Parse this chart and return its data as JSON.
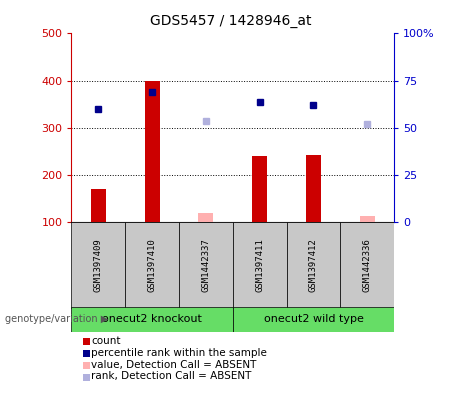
{
  "title": "GDS5457 / 1428946_at",
  "samples": [
    "GSM1397409",
    "GSM1397410",
    "GSM1442337",
    "GSM1397411",
    "GSM1397412",
    "GSM1442336"
  ],
  "absent": [
    false,
    false,
    true,
    false,
    false,
    true
  ],
  "red_values": [
    170,
    400,
    120,
    240,
    242,
    113
  ],
  "blue_values": [
    340,
    375,
    315,
    355,
    348,
    308
  ],
  "group1_label": "onecut2 knockout",
  "group2_label": "onecut2 wild type",
  "group_label": "genotype/variation",
  "ylim_left": [
    100,
    500
  ],
  "yticks_left": [
    100,
    200,
    300,
    400,
    500
  ],
  "left_axis_color": "#cc0000",
  "right_axis_color": "#0000cc",
  "bar_color_present": "#cc0000",
  "bar_color_absent": "#ffb0b0",
  "dot_color_present": "#00008B",
  "dot_color_absent": "#b0b0dd",
  "gray_box_color": "#c8c8c8",
  "green_box_color": "#66dd66",
  "legend_items": [
    {
      "label": "count",
      "color": "#cc0000"
    },
    {
      "label": "percentile rank within the sample",
      "color": "#00008B"
    },
    {
      "label": "value, Detection Call = ABSENT",
      "color": "#ffb0b0"
    },
    {
      "label": "rank, Detection Call = ABSENT",
      "color": "#b0b0dd"
    }
  ],
  "right_tick_labels": [
    "0",
    "25",
    "50",
    "75",
    "100%"
  ],
  "right_tick_positions": [
    100,
    200,
    300,
    400,
    500
  ],
  "title_fontsize": 10,
  "legend_fontsize": 7.5,
  "sample_fontsize": 6.5
}
